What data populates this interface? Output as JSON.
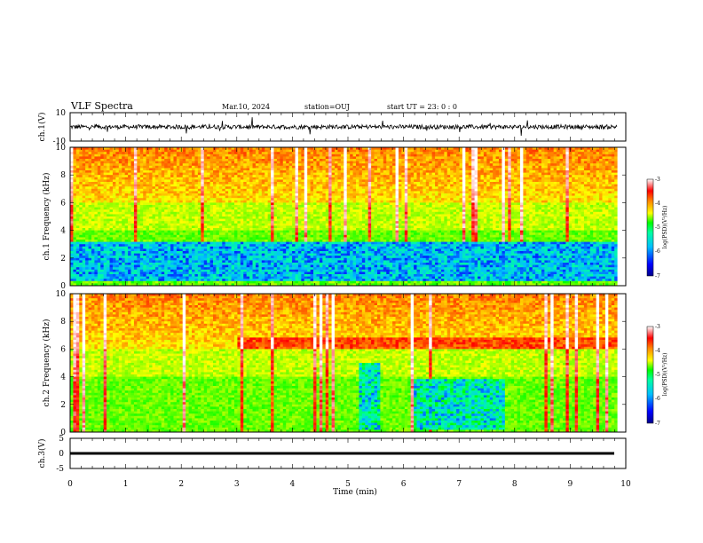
{
  "header": {
    "title": "VLF Spectra",
    "date": "Mar.10, 2024",
    "station": "station=OUJ",
    "start": "start UT = 23: 0 : 0"
  },
  "colors": {
    "spectrum_stops": [
      "#00008b",
      "#0000ff",
      "#00bfff",
      "#00ffa0",
      "#00ff00",
      "#80ff00",
      "#ffff00",
      "#ff8000",
      "#ff0000",
      "#ff9090",
      "#ffffff"
    ]
  },
  "chart_data": [
    {
      "type": "line",
      "name": "ch1-waveform",
      "ylabel": "ch.1(V)",
      "ylim": [
        -10,
        10
      ],
      "yticks": [
        "10",
        "-10"
      ],
      "xlim": [
        0,
        10
      ],
      "baseline": 0
    },
    {
      "type": "heatmap",
      "name": "ch1-spectrogram",
      "ylabel": "ch.1 Frequency (kHz)",
      "ylim": [
        0,
        10
      ],
      "yticks": [
        "0",
        "2",
        "4",
        "6",
        "8",
        "10"
      ],
      "xlim": [
        0,
        10
      ],
      "data_end_min": 9.85,
      "quiet_bands": [
        {
          "from_khz": 0.4,
          "to_khz": 3.1,
          "t_from": 0,
          "t_to": 9.85
        }
      ],
      "colorbar": {
        "label": "log(PSD)(V²/Hz)",
        "ticks": [
          "-3",
          "-4",
          "-5",
          "-6",
          "-7"
        ],
        "range": [
          -7,
          -3
        ]
      }
    },
    {
      "type": "heatmap",
      "name": "ch2-spectrogram",
      "ylabel": "ch.2 Frequency (kHz)",
      "ylim": [
        0,
        10
      ],
      "yticks": [
        "0",
        "2",
        "4",
        "6",
        "8",
        "10"
      ],
      "xlim": [
        0,
        10
      ],
      "data_end_min": 9.85,
      "enhanced_band_khz": [
        6.0,
        6.8
      ],
      "quiet_blocks": [
        {
          "t_from": 5.2,
          "t_to": 5.6,
          "from_khz": 0.2,
          "to_khz": 5.0
        },
        {
          "t_from": 6.2,
          "t_to": 7.85,
          "from_khz": 0.2,
          "to_khz": 3.8
        }
      ],
      "colorbar": {
        "label": "log(PSD)(V²/Hz)",
        "ticks": [
          "-3",
          "-4",
          "-5",
          "-6",
          "-7"
        ],
        "range": [
          -7,
          -3
        ]
      }
    },
    {
      "type": "line",
      "name": "ch3-waveform",
      "ylabel": "ch.3(V)",
      "ylim": [
        -5,
        5
      ],
      "yticks": [
        "5",
        "0",
        "-5"
      ],
      "xlim": [
        0,
        10
      ],
      "baseline": 0
    }
  ],
  "xaxis": {
    "label": "Time (min)",
    "ticks": [
      "0",
      "1",
      "2",
      "3",
      "4",
      "5",
      "6",
      "7",
      "8",
      "9",
      "10"
    ]
  }
}
